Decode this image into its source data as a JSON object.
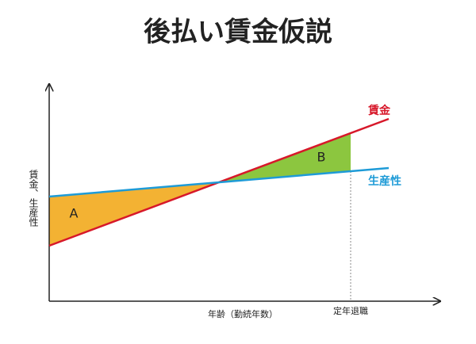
{
  "title": "後払い賃金仮説",
  "y_axis_label": "賃金、生産性",
  "x_axis_label": "年齢（勤続年数）",
  "retirement_label": "定年退職",
  "lines": [
    {
      "label": "賃金"
    },
    {
      "label": "生産性"
    }
  ],
  "regions": [
    {
      "label": "A"
    },
    {
      "label": "B"
    }
  ]
}
